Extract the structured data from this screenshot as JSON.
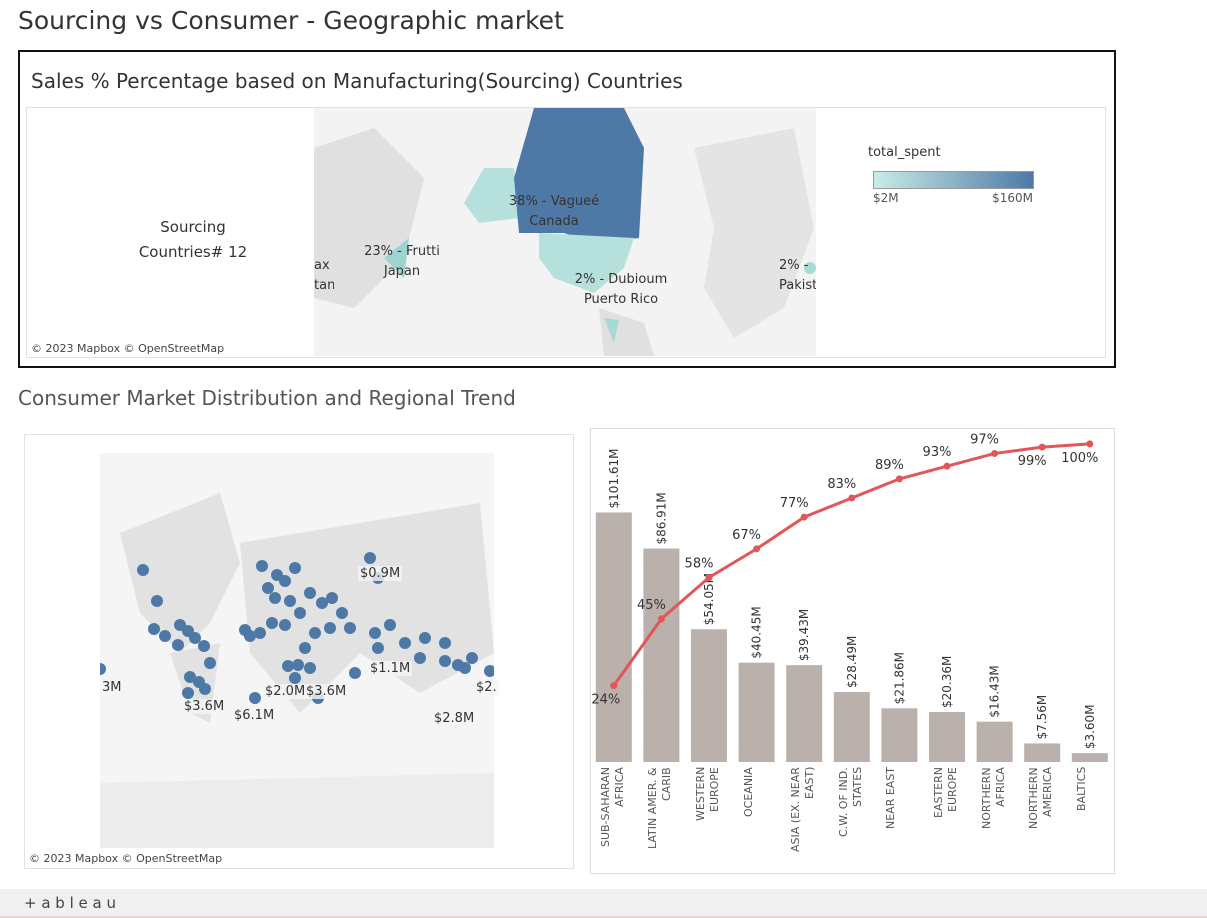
{
  "header": {
    "title": "Sourcing vs Consumer - Geographic market"
  },
  "sourcing_map": {
    "title": "Sales % Percentage based on Manufacturing(Sourcing) Countries",
    "count_label": [
      "Sourcing",
      "Countries# 12"
    ],
    "legend": {
      "title": "total_spent",
      "min_label": "$2M",
      "max_label": "$160M"
    },
    "labels": [
      [
        "38% - Vagueé",
        "Canada"
      ],
      [
        "23% - Frutti",
        "Japan"
      ],
      [
        "2% - Dubioum",
        "Puerto Rico"
      ],
      [
        "2% -",
        "Pakist"
      ],
      [
        "ax",
        "tan"
      ]
    ],
    "attribution": "© 2023 Mapbox © OpenStreetMap"
  },
  "section_title": "Consumer Market Distribution and Regional Trend",
  "consumer_map": {
    "labels": [
      "$0.9M",
      "$1.1M",
      "$2.0M",
      "$3.6M",
      "$3.6M",
      "$6.1M",
      "$2.8M",
      "3M",
      "$2."
    ],
    "attribution": "© 2023 Mapbox © OpenStreetMap"
  },
  "chart_data": {
    "type": "bar",
    "categories": [
      "SUB-SAHARAN AFRICA",
      "LATIN AMER. & CARIB",
      "WESTERN EUROPE",
      "OCEANIA",
      "ASIA (EX. NEAR EAST)",
      "C.W. OF IND. STATES",
      "NEAR EAST",
      "EASTERN EUROPE",
      "NORTHERN AFRICA",
      "NORTHERN AMERICA",
      "BALTICS"
    ],
    "series": [
      {
        "type": "bar",
        "color": "#bab0ac",
        "values": [
          101.61,
          86.91,
          54.05,
          40.45,
          39.43,
          28.49,
          21.86,
          20.36,
          16.43,
          7.56,
          3.6
        ],
        "value_labels": [
          "$101.61M",
          "$86.91M",
          "$54.05M",
          "$40.45M",
          "$39.43M",
          "$28.49M",
          "$21.86M",
          "$20.36M",
          "$16.43M",
          "$7.56M",
          "$3.60M"
        ]
      },
      {
        "type": "line",
        "axis": "y2",
        "color": "#e15759",
        "values": [
          24,
          45,
          58,
          67,
          77,
          83,
          89,
          93,
          97,
          99,
          100
        ],
        "value_labels": [
          "24%",
          "45%",
          "58%",
          "67%",
          "77%",
          "83%",
          "89%",
          "93%",
          "97%",
          "99%",
          "100%"
        ]
      }
    ],
    "ylim": [
      0,
      136
    ],
    "y2lim": [
      0,
      105
    ]
  },
  "footer": {
    "brand": "+ a b l e a u"
  }
}
